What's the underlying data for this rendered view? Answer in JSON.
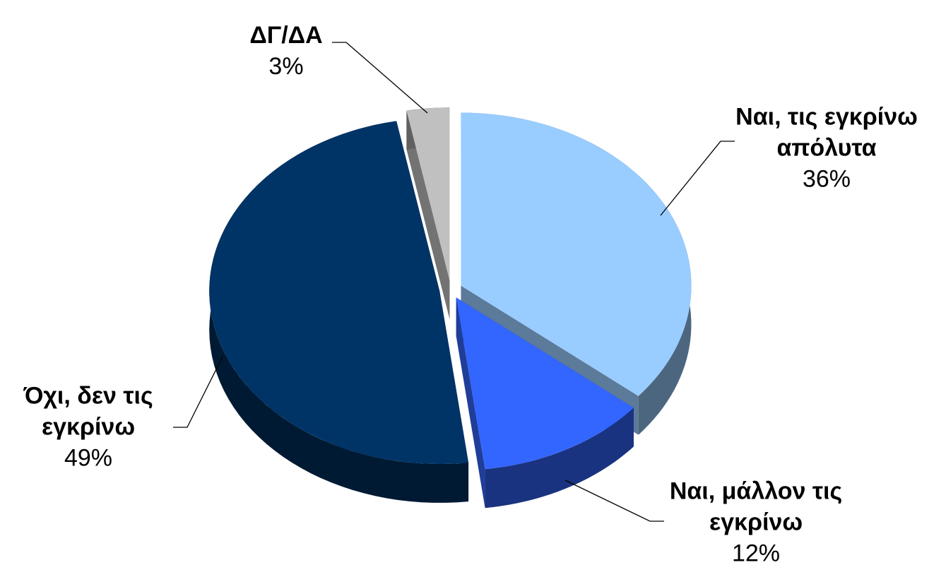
{
  "chart_data": {
    "type": "pie",
    "categories": [
      "Ναι, τις εγκρίνω απόλυτα",
      "Ναι, μάλλον τις εγκρίνω",
      "Όχι, δεν τις εγκρίνω",
      "ΔΓ/ΔΑ"
    ],
    "values": [
      36,
      12,
      49,
      3
    ],
    "value_labels": [
      "36%",
      "12%",
      "49%",
      "3%"
    ],
    "colors": [
      "#99ccff",
      "#3366ff",
      "#003366",
      "#c0c0c0"
    ]
  }
}
